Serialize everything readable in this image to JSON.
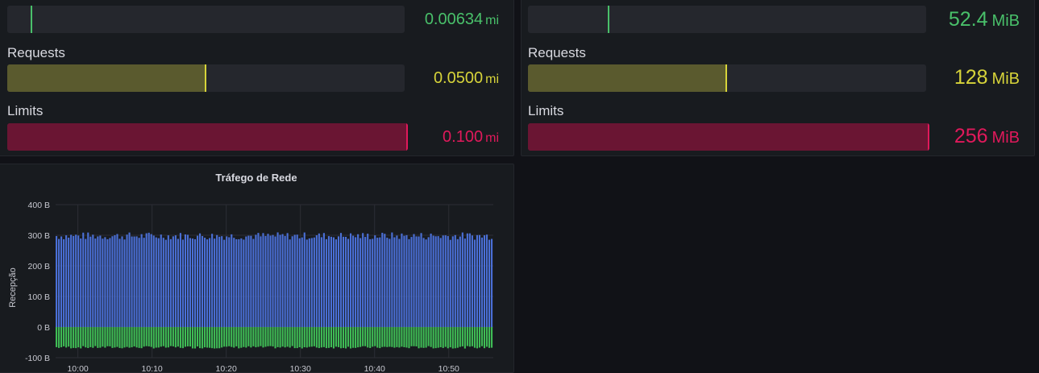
{
  "colors": {
    "green": "#49c06a",
    "yellow": "#d7d43a",
    "yellow_fill": "#5a5a2e",
    "red": "#e0195b",
    "red_fill": "#6a1533",
    "blue_bar": "#4a6fd6",
    "green_bar": "#3fbc55"
  },
  "cpu": {
    "usage": {
      "label": "",
      "value": "0.00634",
      "unit": "mi",
      "fraction": 0.063
    },
    "requests": {
      "label": "Requests",
      "value": "0.0500",
      "unit": "mi",
      "fraction": 0.5
    },
    "limits": {
      "label": "Limits",
      "value": "0.100",
      "unit": "mi",
      "fraction": 1.0
    }
  },
  "memory": {
    "usage": {
      "label": "",
      "value": "52.4",
      "unit": "MiB",
      "fraction": 0.205
    },
    "requests": {
      "label": "Requests",
      "value": "128",
      "unit": "MiB",
      "fraction": 0.5
    },
    "limits": {
      "label": "Limits",
      "value": "256",
      "unit": "MiB",
      "fraction": 1.0
    }
  },
  "network": {
    "title": "Tráfego de Rede",
    "ylabel": "Recepção"
  },
  "chart_data": {
    "type": "bar",
    "title": "Tráfego de Rede",
    "ylabel": "Recepção",
    "xlabel": "",
    "ylim": [
      -100,
      400
    ],
    "y_ticks": [
      "-100 B",
      "0 B",
      "100 B",
      "200 B",
      "300 B",
      "400 B"
    ],
    "x_ticks": [
      "10:00",
      "10:10",
      "10:20",
      "10:30",
      "10:40",
      "10:50"
    ],
    "x_range": [
      "09:57",
      "10:56"
    ],
    "grid": true,
    "legend": "none",
    "series": [
      {
        "color": "#4a6fd6",
        "approx_value": 295,
        "variation": [
          285,
          310
        ]
      },
      {
        "color": "#3fbc55",
        "approx_value": -65,
        "variation": [
          -70,
          -62
        ]
      }
    ]
  }
}
